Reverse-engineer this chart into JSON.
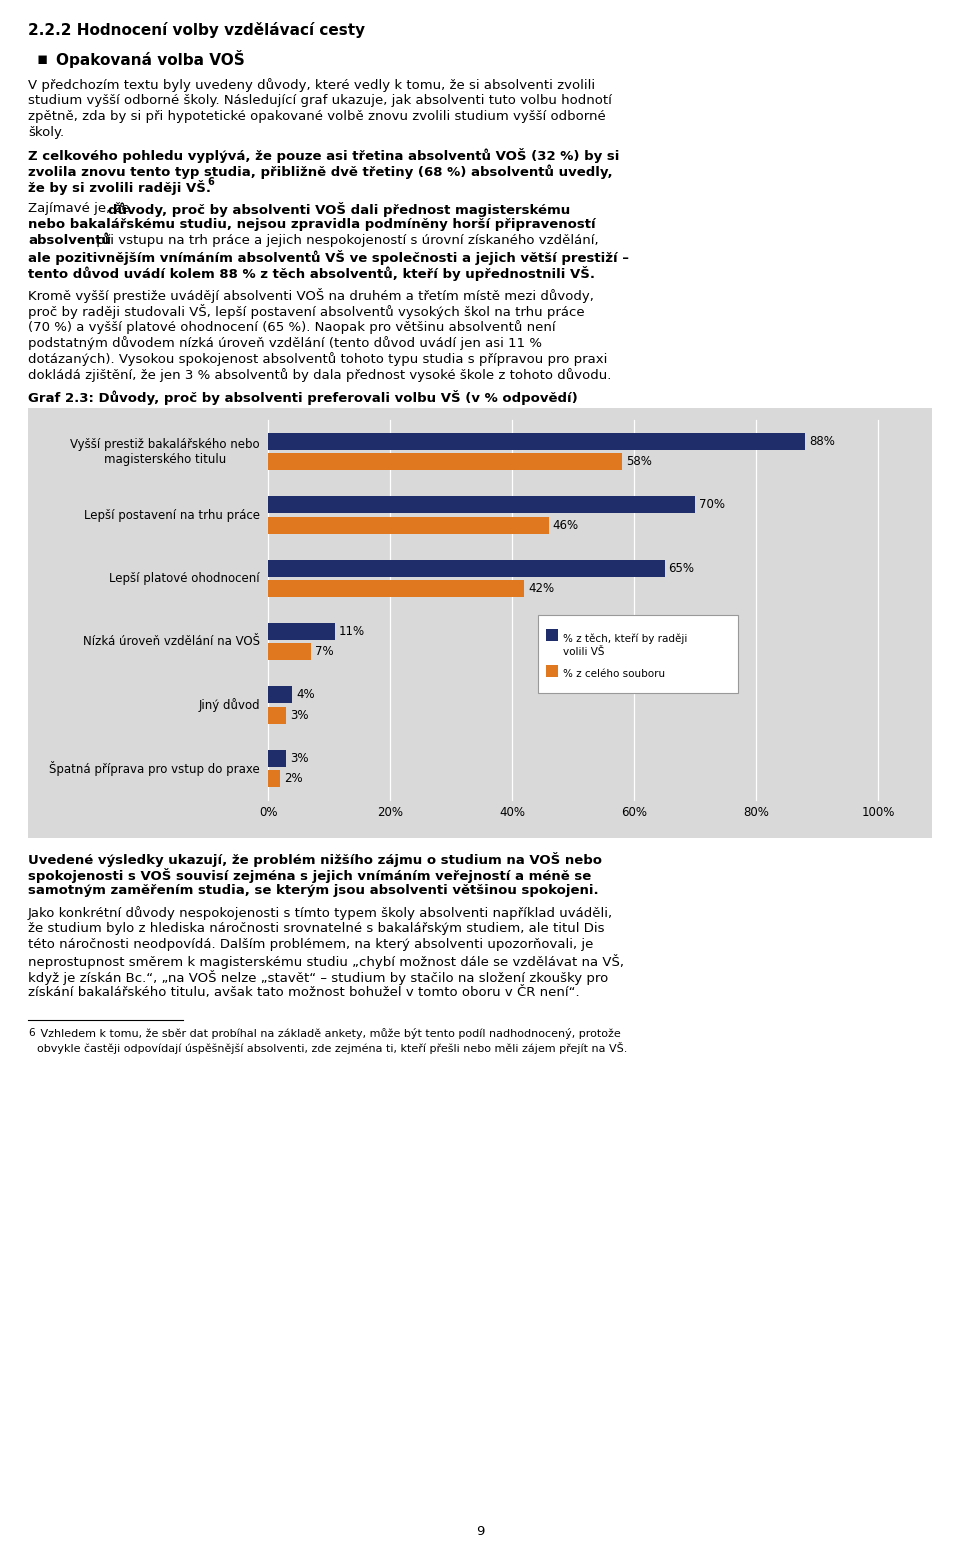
{
  "title_section": "2.2.2 Hodnocení volby vzdělávací cesty",
  "bullet_title": "Opakovaná volba VOŠ",
  "para1_lines": [
    "V předchozím textu byly uvedeny důvody, které vedly k tomu, že si absolventi zvolili",
    "studium vyšší odborné školy. Následující graf ukazuje, jak absolventi tuto volbu hodnotí",
    "zpětně, zda by si při hypotetické opakované volbě znovu zvolili studium vyšší odborné",
    "školy."
  ],
  "para2_lines": [
    "Z celkového pohledu vyplývá, že pouze asi třetina absolventů VOŠ (32 %) by si",
    "zvolila znovu tento typ studia, přibližně dvě třetiny (68 %) absolventů uvedly,",
    "že by si zvolili raději VŠ."
  ],
  "para3_line1_normal": "Zajímavé je, že ",
  "para3_line1_bold": "důvody, proč by absolventi VOŠ dali přednost magisterskému",
  "para3_line2": "nebo bakalářskému studiu, nejsou zpravidla podmíněny horší připraveností",
  "para3_line3_bold": "absolventů",
  "para3_line3_normal": " při vstupu na trh práce a jejich nespokojeností s úrovní získaného vzdělání,",
  "para3_line4": "ale pozitivnějším vnímáním absolventů VŠ ve společnosti a jejich větší prestiží –",
  "para3_line5": "tento důvod uvádí kolem 88 % z těch absolventů, kteří by upřednostnili VŠ.",
  "para4_lines": [
    "Kromě vyšší prestiže uvádějí absolventi VOŠ na druhém a třetím místě mezi důvody,",
    "proč by raději studovali VŠ, lepší postavení absolventů vysokých škol na trhu práce",
    "(70 %) a vyšší platové ohodnocení (65 %). Naopak pro většinu absolventů není",
    "podstatným důvodem nízká úroveň vzdělání (tento důvod uvádí jen asi 11 %",
    "dotázaných). Vysokou spokojenost absolventů tohoto typu studia s přípravou pro praxi",
    "dokládá zjištění, že jen 3 % absolventů by dala přednost vysoké škole z tohoto důvodu."
  ],
  "chart_title": "Graf 2.3: Důvody, proč by absolventi preferovali volbu VŠ (v % odpovědí)",
  "categories": [
    "Vyšší prestiž bakalářského nebo\nmagisterského titulu",
    "Lepší postavení na trhu práce",
    "Lepší platové ohodnocení",
    "Nízká úroveň vzdělání na VOŠ",
    "Jiný důvod",
    "Špatná příprava pro vstup do praxe"
  ],
  "values_blue": [
    88,
    70,
    65,
    11,
    4,
    3
  ],
  "values_orange": [
    58,
    46,
    42,
    7,
    3,
    2
  ],
  "color_blue": "#1F2D6B",
  "color_orange": "#E07820",
  "legend_blue": "% z těch, kteří by raději\nvolili VŠ",
  "legend_orange": "% z celého souboru",
  "para5_lines": [
    "Uvedené výsledky ukazují, že problém nižšího zájmu o studium na VOŠ nebo",
    "spokojenosti s VOŠ souvisí zejména s jejich vnímáním veřejností a méně se",
    "samotným zaměřením studia, se kterým jsou absolventi většinou spokojeni."
  ],
  "para6_lines": [
    "Jako konkrétní důvody nespokojenosti s tímto typem školy absolventi například uváděli,",
    "že studium bylo z hlediska náročnosti srovnatelné s bakalářským studiem, ale titul Dis",
    "této náročnosti neodpovídá. Dalším problémem, na který absolventi upozorňovali, je",
    "neprostupnost směrem k magisterskému studiu „chybí možnost dále se vzdělávat na VŠ,",
    "když je získán Bc.“, „na VOŠ nelze „stavět“ – studium by stačilo na složení zkoušky pro",
    "získání bakalářského titulu, avšak tato možnost bohužel v tomto oboru v ČR není“."
  ],
  "footnote_text_lines": [
    " Vzhledem k tomu, že sběr dat probíhal na základě ankety, může být tento podíl nadhodnocený, protože",
    "obvykle častěji odpovídají úspěšnější absolventi, zde zejména ti, kteří přešli nebo měli zájem přejít na VŠ."
  ],
  "page_number": "9",
  "background_color": "#ffffff",
  "chart_bg_color": "#d9d9d9"
}
